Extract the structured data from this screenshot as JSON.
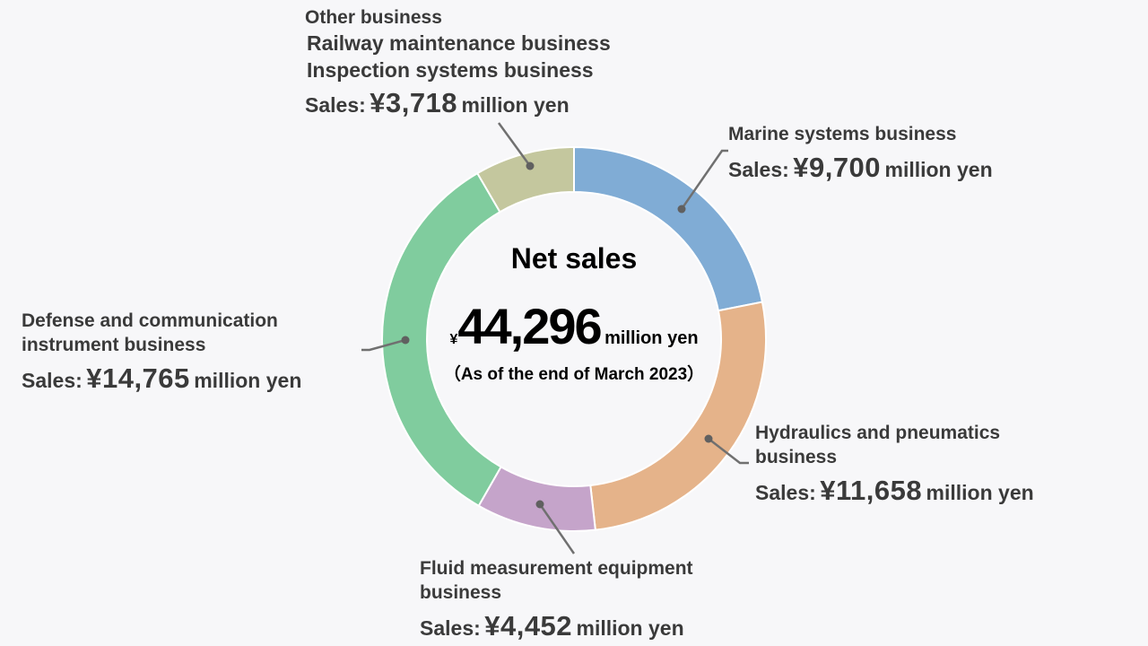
{
  "chart_data": {
    "type": "pie",
    "center": {
      "title": "Net sales",
      "currency": "¥",
      "total": "44,296",
      "unit": "million yen",
      "as_of": "（As of the end of March 2023）"
    },
    "series": [
      {
        "name": "Marine systems business",
        "value": 9700,
        "display": "¥9,700",
        "color": "#80acd5"
      },
      {
        "name": "Hydraulics and pneumatics business",
        "value": 11658,
        "display": "¥11,658",
        "color": "#e5b38a"
      },
      {
        "name": "Fluid measurement equipment business",
        "value": 4452,
        "display": "¥4,452",
        "color": "#c5a4ca"
      },
      {
        "name": "Defense and communication instrument business",
        "value": 14765,
        "display": "¥14,765",
        "color": "#80cc9e"
      },
      {
        "name": "Other business",
        "value": 3718,
        "display": "¥3,718",
        "color": "#c4c79e"
      }
    ],
    "labels": {
      "sales_prefix": "Sales:",
      "unit": "million yen",
      "marine": {
        "line1": "Marine systems business"
      },
      "hydraulics": {
        "line1": "Hydraulics and pneumatics",
        "line2": "business"
      },
      "fluid": {
        "line1": "Fluid measurement equipment",
        "line2": "business"
      },
      "defense": {
        "line1": "Defense and communication",
        "line2": "instrument business"
      },
      "other": {
        "line1": "Other business",
        "line2": "Railway maintenance business",
        "line3": "Inspection systems business"
      }
    }
  }
}
